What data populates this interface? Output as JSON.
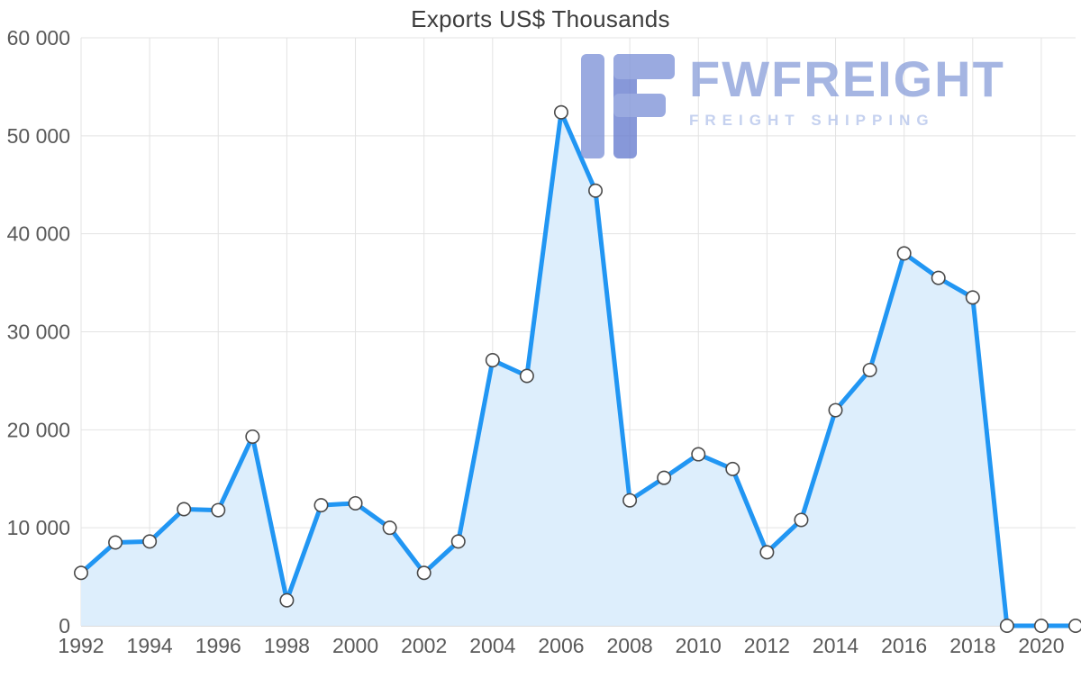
{
  "chart_data": {
    "type": "area",
    "title": "Exports US$ Thousands",
    "xlabel": "",
    "ylabel": "",
    "x": [
      1992,
      1993,
      1994,
      1995,
      1996,
      1997,
      1998,
      1999,
      2000,
      2001,
      2002,
      2003,
      2004,
      2005,
      2006,
      2007,
      2008,
      2009,
      2010,
      2011,
      2012,
      2013,
      2014,
      2015,
      2016,
      2017,
      2018,
      2019,
      2020,
      2021
    ],
    "values": [
      5400,
      8500,
      8600,
      11900,
      11800,
      19300,
      2600,
      12300,
      12500,
      10000,
      5400,
      8600,
      27100,
      25500,
      52400,
      44400,
      12800,
      15100,
      17500,
      16000,
      7500,
      10800,
      22000,
      26100,
      38000,
      35500,
      33500,
      0,
      0,
      0
    ],
    "ylim": [
      0,
      60000
    ],
    "grid": true,
    "legend": "none",
    "y_ticks": [
      {
        "value": 0,
        "label": "0"
      },
      {
        "value": 10000,
        "label": "10 000"
      },
      {
        "value": 20000,
        "label": "20 000"
      },
      {
        "value": 30000,
        "label": "30 000"
      },
      {
        "value": 40000,
        "label": "40 000"
      },
      {
        "value": 50000,
        "label": "50 000"
      },
      {
        "value": 60000,
        "label": "60 000"
      }
    ],
    "x_ticks": [
      1992,
      1994,
      1996,
      1998,
      2000,
      2002,
      2004,
      2006,
      2008,
      2010,
      2012,
      2014,
      2016,
      2018,
      2020
    ],
    "colors": {
      "line": "#2196f3",
      "fill": "#ddeefc",
      "marker_fill": "#ffffff",
      "marker_stroke": "#4a4a4a",
      "grid": "#e3e3e3",
      "axis": "#c7c7c7",
      "tick_text": "#595959",
      "title_text": "#3d3d3d"
    }
  },
  "watermark": {
    "brand": "FWFREIGHT",
    "tagline": "FREIGHT SHIPPING",
    "brand_color": "#8fa3dc",
    "tagline_color": "#b7c6ec",
    "logo_color_light": "#8296d9",
    "logo_color_dark": "#6a7fd0"
  }
}
